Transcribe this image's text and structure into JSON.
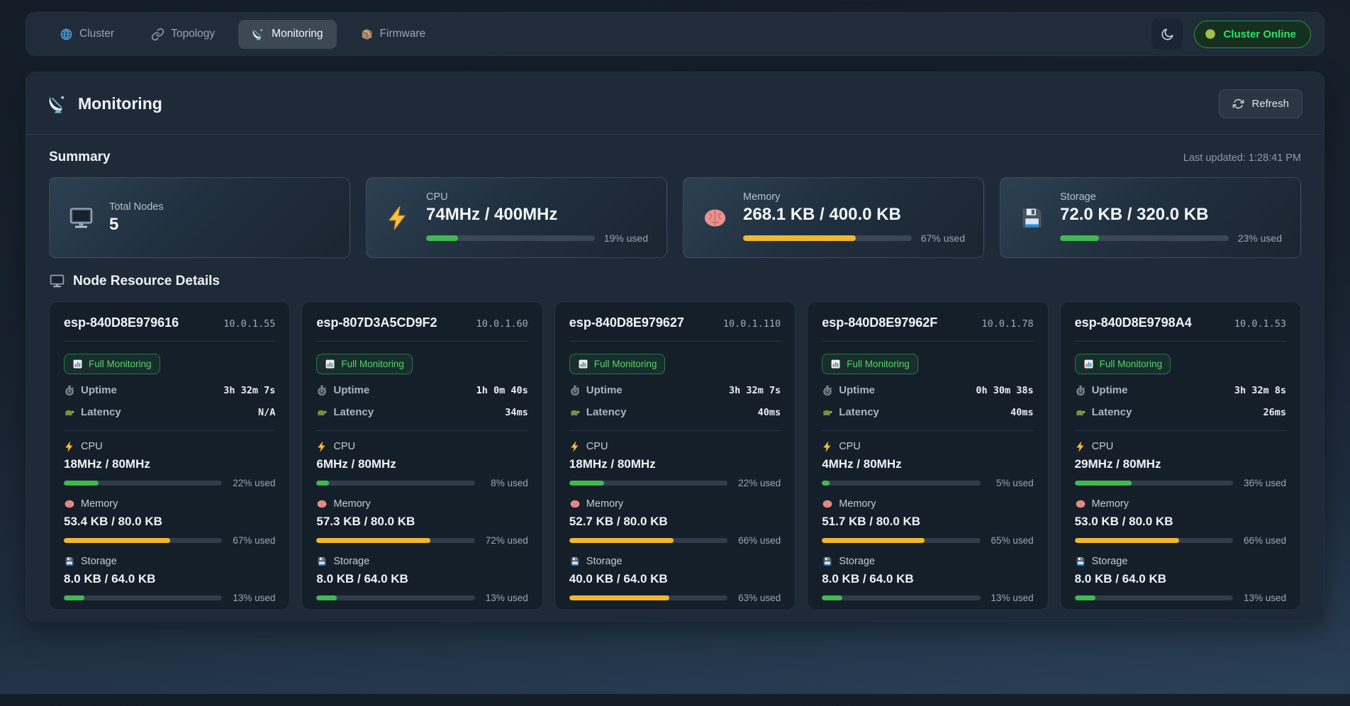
{
  "colors": {
    "green": "#3fb950",
    "yellow": "#f2b72e",
    "online": "#2ee06a",
    "panel_bg": "#1e2a38"
  },
  "nav": {
    "tabs": [
      {
        "label": "Cluster",
        "icon": "globe-icon",
        "active": false
      },
      {
        "label": "Topology",
        "icon": "link-icon",
        "active": false
      },
      {
        "label": "Monitoring",
        "icon": "satellite-icon",
        "active": true
      },
      {
        "label": "Firmware",
        "icon": "package-icon",
        "active": false
      }
    ],
    "theme_icon": "moon-icon",
    "status_label": "Cluster Online"
  },
  "page": {
    "title": "Monitoring",
    "title_icon": "satellite-icon",
    "refresh_label": "Refresh",
    "refresh_icon": "refresh-icon"
  },
  "summary": {
    "heading": "Summary",
    "last_updated": "Last updated: 1:28:41 PM",
    "cards": [
      {
        "icon": "monitor-icon",
        "label": "Total Nodes",
        "value": "5"
      },
      {
        "icon": "lightning-icon",
        "label": "CPU",
        "value": "74MHz / 400MHz",
        "percent": 19,
        "color": "green",
        "used_label": "19% used"
      },
      {
        "icon": "brain-icon",
        "label": "Memory",
        "value": "268.1 KB / 400.0 KB",
        "percent": 67,
        "color": "yellow",
        "used_label": "67% used"
      },
      {
        "icon": "floppy-icon",
        "label": "Storage",
        "value": "72.0 KB / 320.0 KB",
        "percent": 23,
        "color": "green",
        "used_label": "23% used"
      }
    ]
  },
  "nodes": {
    "heading": "Node Resource Details",
    "heading_icon": "monitor-icon",
    "badge_label": "Full Monitoring",
    "badge_icon": "chart-icon",
    "uptime_label": "Uptime",
    "uptime_icon": "stopwatch-icon",
    "latency_label": "Latency",
    "latency_icon": "turtle-icon",
    "cpu_label": "CPU",
    "cpu_icon": "lightning-icon",
    "memory_label": "Memory",
    "memory_icon": "brain-icon",
    "storage_label": "Storage",
    "storage_icon": "floppy-icon",
    "cards": [
      {
        "name": "esp-840D8E979616",
        "ip": "10.0.1.55",
        "uptime": "3h 32m 7s",
        "latency": "N/A",
        "cpu": {
          "value": "18MHz / 80MHz",
          "percent": 22,
          "color": "green",
          "used": "22% used"
        },
        "memory": {
          "value": "53.4 KB / 80.0 KB",
          "percent": 67,
          "color": "yellow",
          "used": "67% used"
        },
        "storage": {
          "value": "8.0 KB / 64.0 KB",
          "percent": 13,
          "color": "green",
          "used": "13% used"
        }
      },
      {
        "name": "esp-807D3A5CD9F2",
        "ip": "10.0.1.60",
        "uptime": "1h 0m 40s",
        "latency": "34ms",
        "cpu": {
          "value": "6MHz / 80MHz",
          "percent": 8,
          "color": "green",
          "used": "8% used"
        },
        "memory": {
          "value": "57.3 KB / 80.0 KB",
          "percent": 72,
          "color": "yellow",
          "used": "72% used"
        },
        "storage": {
          "value": "8.0 KB / 64.0 KB",
          "percent": 13,
          "color": "green",
          "used": "13% used"
        }
      },
      {
        "name": "esp-840D8E979627",
        "ip": "10.0.1.110",
        "uptime": "3h 32m 7s",
        "latency": "40ms",
        "cpu": {
          "value": "18MHz / 80MHz",
          "percent": 22,
          "color": "green",
          "used": "22% used"
        },
        "memory": {
          "value": "52.7 KB / 80.0 KB",
          "percent": 66,
          "color": "yellow",
          "used": "66% used"
        },
        "storage": {
          "value": "40.0 KB / 64.0 KB",
          "percent": 63,
          "color": "yellow",
          "used": "63% used"
        }
      },
      {
        "name": "esp-840D8E97962F",
        "ip": "10.0.1.78",
        "uptime": "0h 30m 38s",
        "latency": "40ms",
        "cpu": {
          "value": "4MHz / 80MHz",
          "percent": 5,
          "color": "green",
          "used": "5% used"
        },
        "memory": {
          "value": "51.7 KB / 80.0 KB",
          "percent": 65,
          "color": "yellow",
          "used": "65% used"
        },
        "storage": {
          "value": "8.0 KB / 64.0 KB",
          "percent": 13,
          "color": "green",
          "used": "13% used"
        }
      },
      {
        "name": "esp-840D8E9798A4",
        "ip": "10.0.1.53",
        "uptime": "3h 32m 8s",
        "latency": "26ms",
        "cpu": {
          "value": "29MHz / 80MHz",
          "percent": 36,
          "color": "green",
          "used": "36% used"
        },
        "memory": {
          "value": "53.0 KB / 80.0 KB",
          "percent": 66,
          "color": "yellow",
          "used": "66% used"
        },
        "storage": {
          "value": "8.0 KB / 64.0 KB",
          "percent": 13,
          "color": "green",
          "used": "13% used"
        }
      }
    ]
  }
}
